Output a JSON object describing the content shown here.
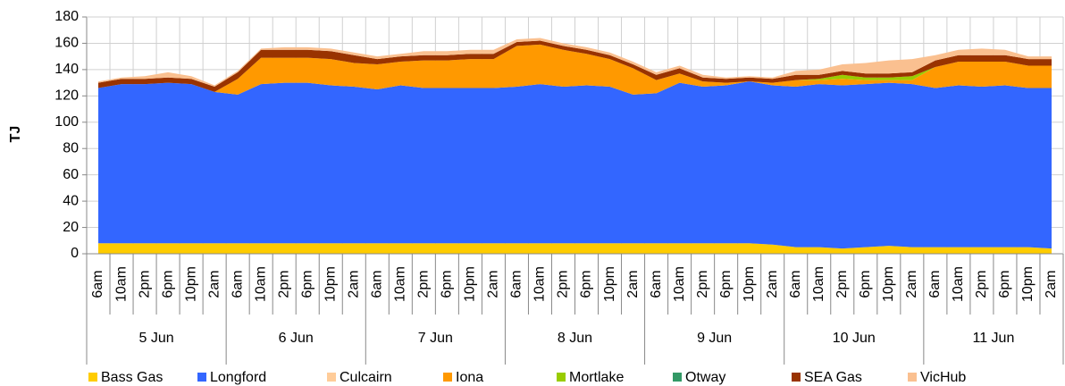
{
  "chart_data": {
    "type": "stacked-area",
    "y_label": "TJ",
    "ylim": [
      0,
      180
    ],
    "yticks": [
      0,
      20,
      40,
      60,
      80,
      100,
      120,
      140,
      160,
      180
    ],
    "grid": true,
    "categories": [
      "6am",
      "10am",
      "2pm",
      "6pm",
      "10pm",
      "2am",
      "6am",
      "10am",
      "2pm",
      "6pm",
      "10pm",
      "2am",
      "6am",
      "10am",
      "2pm",
      "6pm",
      "10pm",
      "2am",
      "6am",
      "10am",
      "2pm",
      "6pm",
      "10pm",
      "2am",
      "6am",
      "10am",
      "2pm",
      "6pm",
      "10pm",
      "2am",
      "6am",
      "10am",
      "2pm",
      "6pm",
      "10pm",
      "2am",
      "6am",
      "10am",
      "2pm",
      "6pm",
      "10pm",
      "2am"
    ],
    "groups": [
      "5 Jun",
      "6 Jun",
      "7 Jun",
      "8 Jun",
      "9 Jun",
      "10 Jun",
      "11 Jun"
    ],
    "legend": "bottom",
    "series": [
      {
        "name": "Bass Gas",
        "color": "#ffcc00",
        "values": [
          8,
          8,
          8,
          8,
          8,
          8,
          8,
          8,
          8,
          8,
          8,
          8,
          8,
          8,
          8,
          8,
          8,
          8,
          8,
          8,
          8,
          8,
          8,
          8,
          8,
          8,
          8,
          8,
          8,
          7,
          5,
          5,
          4,
          5,
          6,
          5,
          5,
          5,
          5,
          5,
          5,
          4
        ]
      },
      {
        "name": "Longford",
        "color": "#3366ff",
        "values": [
          118,
          121,
          121,
          122,
          121,
          115,
          113,
          121,
          122,
          122,
          120,
          119,
          117,
          120,
          118,
          118,
          118,
          118,
          119,
          121,
          119,
          120,
          119,
          113,
          114,
          122,
          119,
          120,
          123,
          121,
          122,
          124,
          124,
          124,
          124,
          124,
          121,
          123,
          122,
          123,
          121,
          122
        ]
      },
      {
        "name": "Culcairn",
        "color": "#ffcc99",
        "values": [
          0,
          0,
          0,
          0,
          0,
          0,
          0,
          0,
          0,
          0,
          0,
          0,
          0,
          0,
          0,
          0,
          0,
          0,
          0,
          0,
          0,
          0,
          0,
          0,
          0,
          0,
          0,
          0,
          0,
          0,
          0,
          0,
          0,
          0,
          0,
          0,
          0,
          0,
          0,
          0,
          0,
          0
        ]
      },
      {
        "name": "Iona",
        "color": "#ff9900",
        "values": [
          0,
          0,
          0,
          0,
          0,
          0,
          12,
          20,
          19,
          19,
          20,
          18,
          19,
          18,
          21,
          21,
          22,
          22,
          31,
          30,
          28,
          24,
          21,
          20,
          10,
          7,
          4,
          2,
          0,
          2,
          5,
          3,
          5,
          3,
          2,
          3,
          16,
          18,
          19,
          18,
          17,
          17
        ]
      },
      {
        "name": "Mortlake",
        "color": "#99cc00",
        "values": [
          0,
          0,
          0,
          0,
          0,
          0,
          0,
          0,
          0,
          0,
          0,
          0,
          0,
          0,
          0,
          0,
          0,
          0,
          0,
          0,
          0,
          0,
          0,
          0,
          0,
          0,
          0,
          0,
          0,
          0,
          0,
          1,
          3,
          2,
          2,
          3,
          0,
          0,
          0,
          0,
          0,
          0
        ]
      },
      {
        "name": "Otway",
        "color": "#339966",
        "values": [
          0,
          0,
          0,
          0,
          0,
          0,
          0,
          0,
          0,
          0,
          0,
          0,
          0,
          0,
          0,
          0,
          0,
          0,
          0,
          0,
          0,
          0,
          0,
          0,
          0,
          0,
          0,
          0,
          0,
          0,
          0,
          0,
          0,
          0,
          0,
          0,
          0,
          0,
          0,
          0,
          0,
          0
        ]
      },
      {
        "name": "SEA Gas",
        "color": "#993300",
        "values": [
          4,
          4,
          4,
          4,
          4,
          4,
          5,
          6,
          6,
          6,
          6,
          6,
          4,
          4,
          4,
          4,
          4,
          4,
          3,
          3,
          3,
          3,
          3,
          3,
          4,
          4,
          3,
          3,
          3,
          3,
          4,
          3,
          3,
          3,
          3,
          3,
          5,
          5,
          5,
          5,
          5,
          5
        ]
      },
      {
        "name": "VicHub",
        "color": "#fac090",
        "values": [
          1,
          1,
          2,
          4,
          2,
          1,
          1,
          1,
          2,
          2,
          2,
          2,
          2,
          2,
          3,
          3,
          3,
          3,
          2,
          2,
          2,
          2,
          2,
          2,
          2,
          2,
          2,
          1,
          1,
          1,
          3,
          4,
          5,
          8,
          10,
          10,
          4,
          4,
          5,
          4,
          2,
          2
        ]
      }
    ]
  }
}
